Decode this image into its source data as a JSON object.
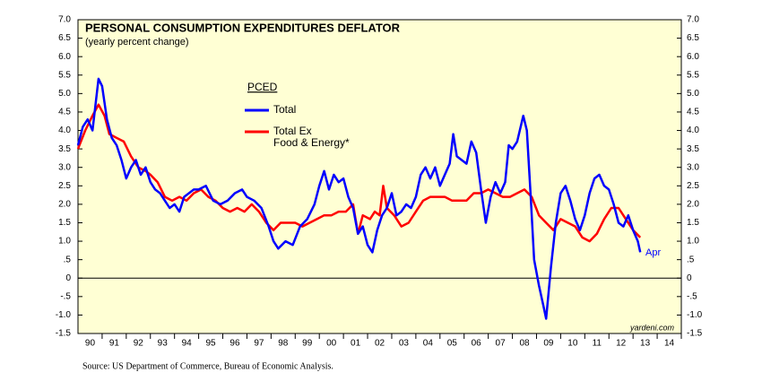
{
  "chart_data": {
    "type": "line",
    "title": "PERSONAL CONSUMPTION EXPENDITURES DEFLATOR",
    "subtitle": "(yearly percent change)",
    "legend_title": "PCED",
    "annotations": [
      "Apr",
      "yardeni.com"
    ],
    "source": "Source: US Department of Commerce, Bureau of Economic Analysis.",
    "xlim": [
      1990,
      2015
    ],
    "xticks": [
      {
        "value": 1990.5,
        "label": "90"
      },
      {
        "value": 1991.5,
        "label": "91"
      },
      {
        "value": 1992.5,
        "label": "92"
      },
      {
        "value": 1993.5,
        "label": "93"
      },
      {
        "value": 1994.5,
        "label": "94"
      },
      {
        "value": 1995.5,
        "label": "95"
      },
      {
        "value": 1996.5,
        "label": "96"
      },
      {
        "value": 1997.5,
        "label": "97"
      },
      {
        "value": 1998.5,
        "label": "98"
      },
      {
        "value": 1999.5,
        "label": "99"
      },
      {
        "value": 2000.5,
        "label": "00"
      },
      {
        "value": 2001.5,
        "label": "01"
      },
      {
        "value": 2002.5,
        "label": "02"
      },
      {
        "value": 2003.5,
        "label": "03"
      },
      {
        "value": 2004.5,
        "label": "04"
      },
      {
        "value": 2005.5,
        "label": "05"
      },
      {
        "value": 2006.5,
        "label": "06"
      },
      {
        "value": 2007.5,
        "label": "07"
      },
      {
        "value": 2008.5,
        "label": "08"
      },
      {
        "value": 2009.5,
        "label": "09"
      },
      {
        "value": 2010.5,
        "label": "10"
      },
      {
        "value": 2011.5,
        "label": "11"
      },
      {
        "value": 2012.5,
        "label": "12"
      },
      {
        "value": 2013.5,
        "label": "13"
      },
      {
        "value": 2014.5,
        "label": "14"
      }
    ],
    "ylim": [
      -1.5,
      7
    ],
    "yticks": [
      {
        "value": 7,
        "label": "7.0"
      },
      6.5,
      {
        "value": 6,
        "label": "6.0"
      },
      5.5,
      {
        "value": 5,
        "label": "5.0"
      },
      4.5,
      {
        "value": 4,
        "label": "4.0"
      },
      3.5,
      {
        "value": 3,
        "label": "3.0"
      },
      2.5,
      {
        "value": 2,
        "label": "2.0"
      },
      1.5,
      {
        "value": 1,
        "label": "1.0"
      },
      {
        "value": 0.5,
        "label": ".5"
      },
      0,
      {
        "value": -0.5,
        "label": "-.5"
      },
      {
        "value": -1,
        "label": "-1.0"
      },
      -1.5
    ],
    "series": [
      {
        "name": "Total",
        "color": "#0000ff",
        "x": [
          1990.0,
          1990.2,
          1990.4,
          1990.6,
          1990.85,
          1991.0,
          1991.2,
          1991.4,
          1991.6,
          1991.8,
          1992.0,
          1992.2,
          1992.4,
          1992.6,
          1992.8,
          1993.0,
          1993.2,
          1993.4,
          1993.6,
          1993.8,
          1994.0,
          1994.2,
          1994.4,
          1994.6,
          1994.8,
          1995.0,
          1995.3,
          1995.6,
          1995.9,
          1996.2,
          1996.5,
          1996.8,
          1997.0,
          1997.3,
          1997.6,
          1997.9,
          1998.1,
          1998.3,
          1998.6,
          1998.9,
          1999.2,
          1999.5,
          1999.8,
          2000.0,
          2000.2,
          2000.4,
          2000.6,
          2000.8,
          2001.0,
          2001.2,
          2001.4,
          2001.6,
          2001.8,
          2002.0,
          2002.2,
          2002.4,
          2002.6,
          2002.8,
          2003.0,
          2003.2,
          2003.4,
          2003.6,
          2003.8,
          2004.0,
          2004.2,
          2004.4,
          2004.6,
          2004.8,
          2005.0,
          2005.2,
          2005.4,
          2005.55,
          2005.7,
          2005.9,
          2006.1,
          2006.3,
          2006.5,
          2006.7,
          2006.9,
          2007.1,
          2007.3,
          2007.5,
          2007.7,
          2007.85,
          2008.0,
          2008.2,
          2008.45,
          2008.6,
          2008.75,
          2008.9,
          2009.1,
          2009.3,
          2009.4,
          2009.6,
          2009.8,
          2010.0,
          2010.2,
          2010.4,
          2010.6,
          2010.8,
          2011.0,
          2011.2,
          2011.4,
          2011.6,
          2011.8,
          2012.0,
          2012.2,
          2012.4,
          2012.6,
          2012.8,
          2013.0,
          2013.2,
          2013.3
        ],
        "values": [
          3.6,
          4.1,
          4.3,
          4.0,
          5.4,
          5.2,
          4.3,
          3.8,
          3.6,
          3.2,
          2.7,
          3.0,
          3.2,
          2.8,
          3.0,
          2.6,
          2.4,
          2.3,
          2.1,
          1.9,
          2.0,
          1.8,
          2.2,
          2.3,
          2.4,
          2.4,
          2.5,
          2.1,
          2.0,
          2.1,
          2.3,
          2.4,
          2.2,
          2.1,
          1.9,
          1.4,
          1.0,
          0.8,
          1.0,
          0.9,
          1.4,
          1.6,
          2.0,
          2.5,
          2.9,
          2.4,
          2.8,
          2.6,
          2.7,
          2.2,
          1.9,
          1.2,
          1.4,
          0.9,
          0.7,
          1.3,
          1.7,
          1.9,
          2.3,
          1.7,
          1.8,
          2.0,
          1.9,
          2.2,
          2.8,
          3.0,
          2.7,
          3.0,
          2.5,
          2.8,
          3.1,
          3.9,
          3.3,
          3.2,
          3.1,
          3.7,
          3.4,
          2.4,
          1.5,
          2.2,
          2.6,
          2.3,
          2.6,
          3.6,
          3.5,
          3.7,
          4.4,
          4.0,
          2.3,
          0.5,
          -0.2,
          -0.8,
          -1.1,
          0.3,
          1.5,
          2.3,
          2.5,
          2.1,
          1.6,
          1.3,
          1.7,
          2.3,
          2.7,
          2.8,
          2.5,
          2.4,
          2.0,
          1.5,
          1.4,
          1.7,
          1.3,
          1.0,
          0.7
        ]
      },
      {
        "name": "Total Ex\nFood & Energy*",
        "color": "#ff0000",
        "x": [
          1990.0,
          1990.3,
          1990.6,
          1990.85,
          1991.1,
          1991.3,
          1991.6,
          1991.9,
          1992.2,
          1992.5,
          1992.8,
          1993.0,
          1993.3,
          1993.6,
          1993.9,
          1994.2,
          1994.5,
          1994.8,
          1995.1,
          1995.4,
          1995.7,
          1996.0,
          1996.3,
          1996.6,
          1996.9,
          1997.2,
          1997.5,
          1997.8,
          1998.1,
          1998.4,
          1998.7,
          1999.0,
          1999.3,
          1999.6,
          1999.9,
          2000.2,
          2000.5,
          2000.8,
          2001.1,
          2001.4,
          2001.6,
          2001.8,
          2002.1,
          2002.3,
          2002.5,
          2002.65,
          2002.8,
          2003.1,
          2003.4,
          2003.7,
          2004.0,
          2004.3,
          2004.6,
          2004.9,
          2005.2,
          2005.5,
          2005.8,
          2006.1,
          2006.4,
          2006.7,
          2007.0,
          2007.3,
          2007.6,
          2007.9,
          2008.2,
          2008.5,
          2008.8,
          2009.1,
          2009.4,
          2009.7,
          2010.0,
          2010.3,
          2010.6,
          2010.9,
          2011.2,
          2011.5,
          2011.8,
          2012.1,
          2012.4,
          2012.7,
          2013.0,
          2013.3
        ],
        "values": [
          3.5,
          4.0,
          4.4,
          4.7,
          4.4,
          3.9,
          3.8,
          3.7,
          3.3,
          3.0,
          2.9,
          2.8,
          2.6,
          2.2,
          2.1,
          2.2,
          2.1,
          2.3,
          2.4,
          2.2,
          2.1,
          1.9,
          1.8,
          1.9,
          1.8,
          2.0,
          1.8,
          1.5,
          1.3,
          1.5,
          1.5,
          1.5,
          1.4,
          1.5,
          1.6,
          1.7,
          1.7,
          1.8,
          1.8,
          2.0,
          1.2,
          1.7,
          1.6,
          1.8,
          1.7,
          2.5,
          1.9,
          1.7,
          1.4,
          1.5,
          1.8,
          2.1,
          2.2,
          2.2,
          2.2,
          2.1,
          2.1,
          2.1,
          2.3,
          2.3,
          2.4,
          2.3,
          2.2,
          2.2,
          2.3,
          2.4,
          2.2,
          1.7,
          1.5,
          1.3,
          1.6,
          1.5,
          1.4,
          1.1,
          1.0,
          1.2,
          1.6,
          1.9,
          1.9,
          1.6,
          1.3,
          1.1
        ]
      }
    ]
  }
}
